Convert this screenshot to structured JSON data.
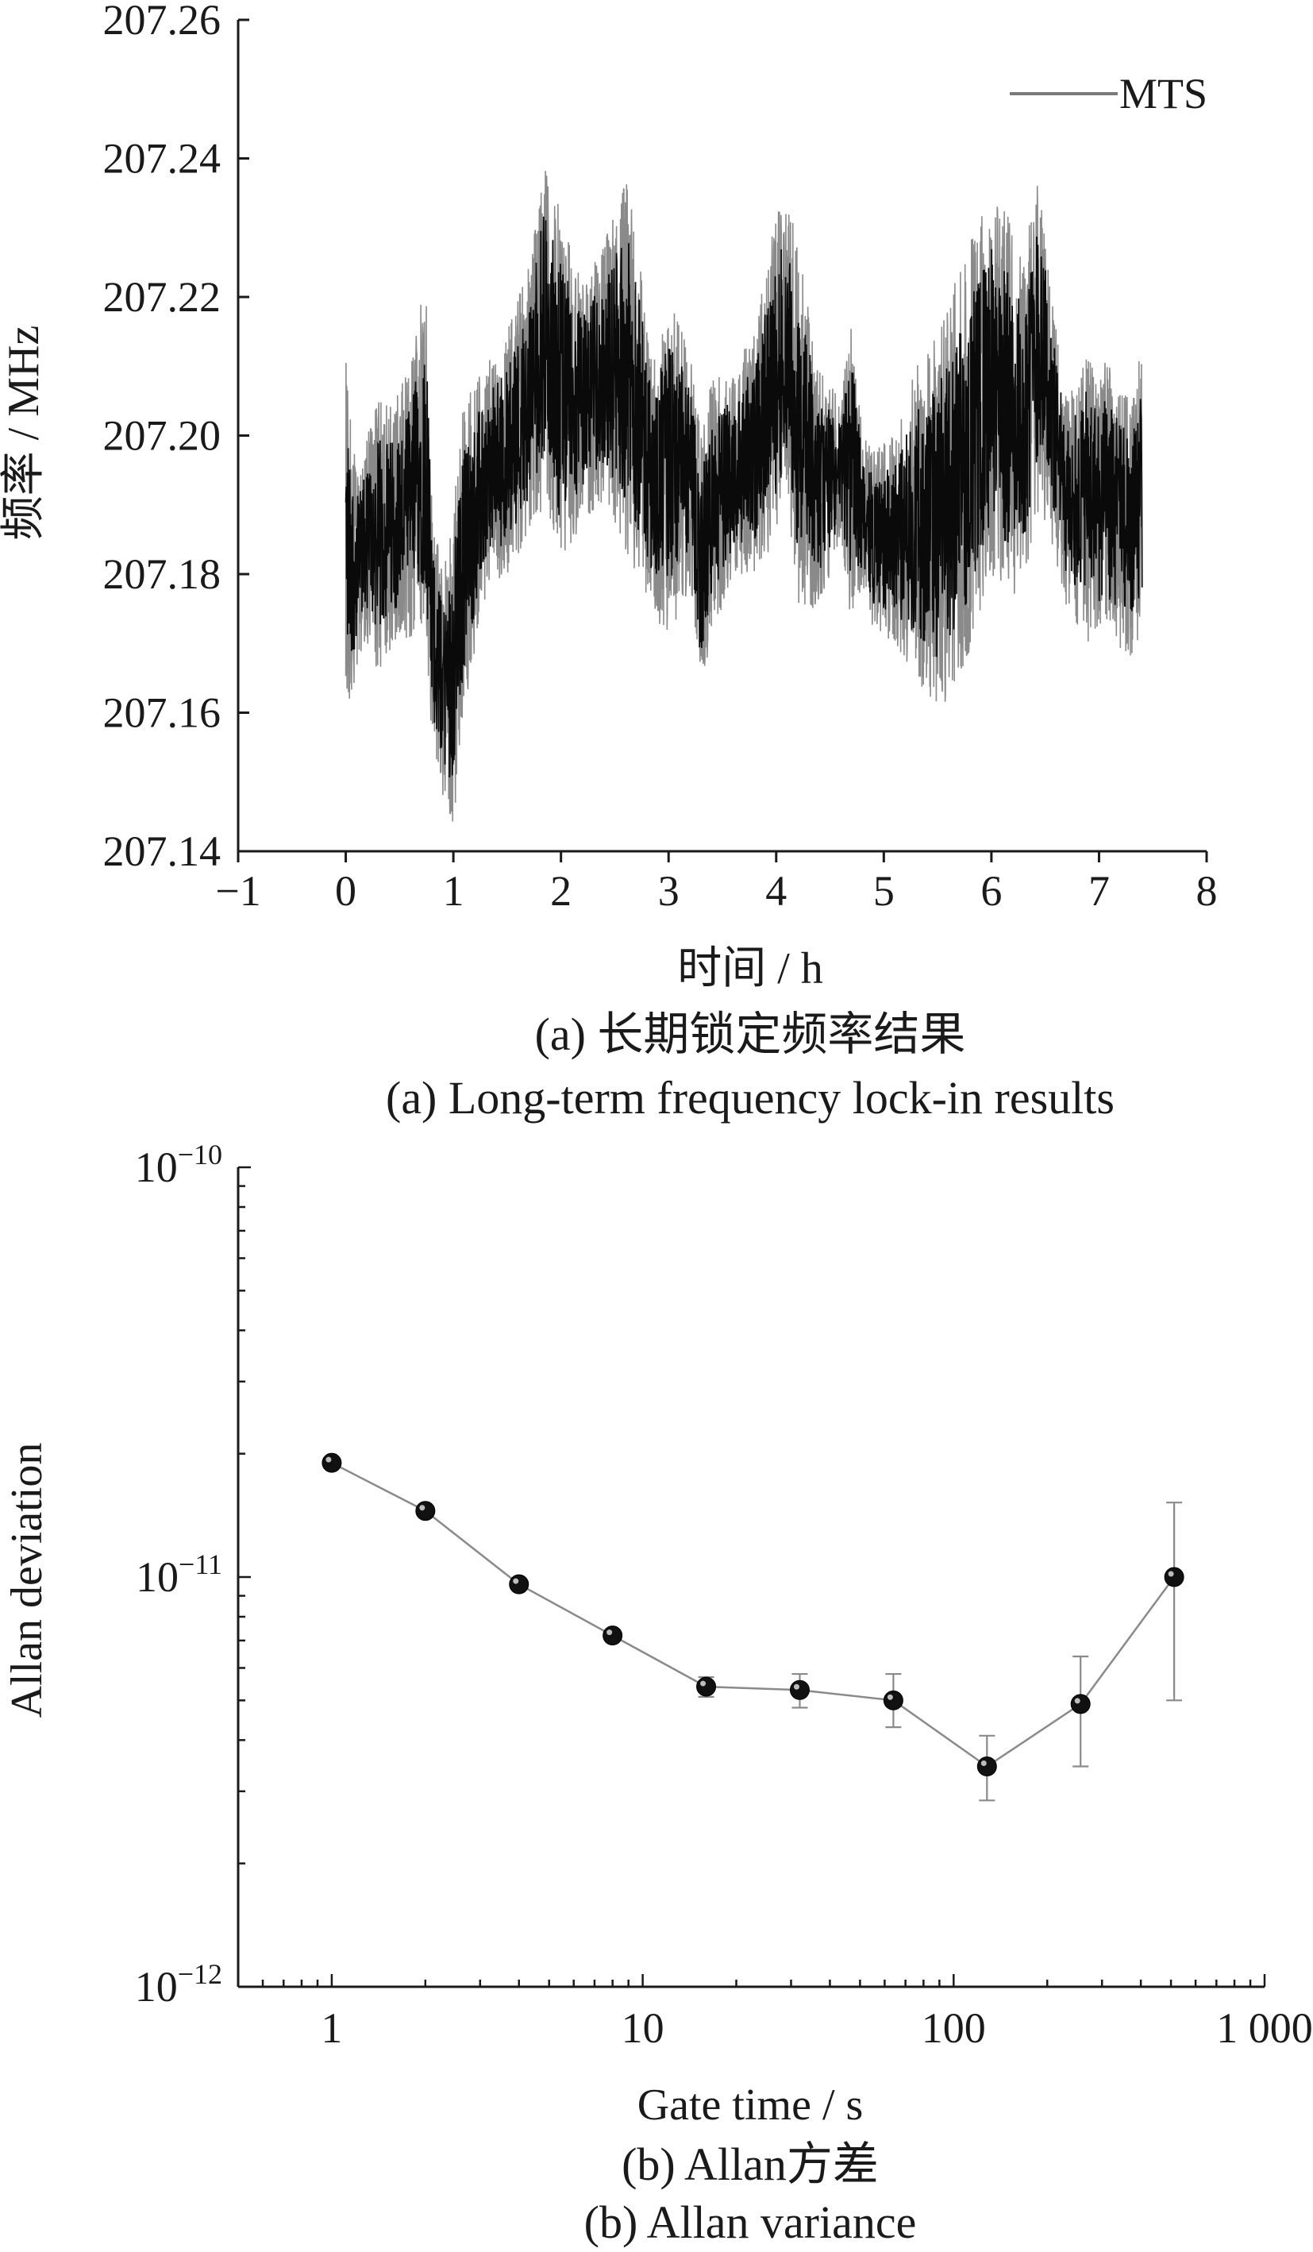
{
  "chart_data": [
    {
      "type": "line",
      "xlabel": "时间 / h",
      "ylabel": "频率 / MHz",
      "xlim": [
        -1,
        8
      ],
      "ylim": [
        207.14,
        207.26
      ],
      "x_ticks": [
        -1,
        0,
        1,
        2,
        3,
        4,
        5,
        6,
        7,
        8
      ],
      "x_tick_labels": [
        "−1",
        "0",
        "1",
        "2",
        "3",
        "4",
        "5",
        "6",
        "7",
        "8"
      ],
      "y_ticks": [
        207.14,
        207.16,
        207.18,
        207.2,
        207.22,
        207.24,
        207.26
      ],
      "y_tick_labels": [
        "207.14",
        "207.16",
        "207.18",
        "207.20",
        "207.22",
        "207.24",
        "207.26"
      ],
      "legend": {
        "entries": [
          "MTS"
        ],
        "position": "top-right"
      },
      "caption_cn": "(a) 长期锁定频率结果",
      "caption_en": "(a) Long-term frequency lock-in results",
      "series": [
        {
          "name": "MTS",
          "x_range": [
            0,
            7.4
          ],
          "envelope": {
            "x": [
              0.0,
              0.1,
              0.2,
              0.3,
              0.45,
              0.6,
              0.7,
              0.75,
              0.8,
              0.9,
              1.0,
              1.1,
              1.3,
              1.5,
              1.7,
              1.85,
              2.0,
              2.2,
              2.4,
              2.6,
              2.7,
              2.85,
              3.0,
              3.2,
              3.3,
              3.4,
              3.6,
              3.8,
              4.0,
              4.1,
              4.2,
              4.4,
              4.6,
              4.7,
              4.8,
              4.9,
              5.1,
              5.3,
              5.5,
              5.6,
              5.8,
              6.0,
              6.15,
              6.3,
              6.45,
              6.55,
              6.7,
              6.9,
              7.1,
              7.3,
              7.4
            ],
            "upper": [
              207.211,
              207.195,
              207.2,
              207.205,
              207.205,
              207.21,
              207.22,
              207.223,
              207.19,
              207.18,
              207.19,
              207.206,
              207.21,
              207.215,
              207.225,
              207.24,
              207.232,
              207.222,
              207.228,
              207.237,
              207.231,
              207.21,
              207.222,
              207.212,
              207.2,
              207.208,
              207.21,
              207.215,
              207.232,
              207.235,
              207.228,
              207.21,
              207.205,
              207.218,
              207.2,
              207.198,
              207.2,
              207.21,
              207.215,
              207.22,
              207.228,
              207.235,
              207.232,
              207.225,
              207.242,
              207.222,
              207.205,
              207.213,
              207.21,
              207.205,
              207.213
            ],
            "lower": [
              207.16,
              207.165,
              207.17,
              207.165,
              207.17,
              207.17,
              207.172,
              207.168,
              207.155,
              207.148,
              207.143,
              207.16,
              207.177,
              207.18,
              207.185,
              207.19,
              207.18,
              207.188,
              207.19,
              207.183,
              207.18,
              207.175,
              207.17,
              207.178,
              207.162,
              207.17,
              207.18,
              207.18,
              207.185,
              207.19,
              207.175,
              207.175,
              207.185,
              207.172,
              207.178,
              207.172,
              207.17,
              207.165,
              207.16,
              207.162,
              207.168,
              207.18,
              207.175,
              207.178,
              207.19,
              207.185,
              207.175,
              207.17,
              207.17,
              207.168,
              207.17
            ]
          }
        }
      ]
    },
    {
      "type": "scatter",
      "xlabel": "Gate time / s",
      "ylabel": "Allan deviation",
      "xscale": "log",
      "yscale": "log",
      "xlim": [
        0.5,
        1000
      ],
      "ylim": [
        1e-12,
        1e-10
      ],
      "x_ticks": [
        1,
        10,
        100,
        1000
      ],
      "x_tick_labels": [
        "1",
        "10",
        "100",
        "1 000"
      ],
      "y_ticks": [
        1e-12,
        1e-11,
        1e-10
      ],
      "y_tick_labels": [
        {
          "base": "10",
          "exp": "−12"
        },
        {
          "base": "10",
          "exp": "−11"
        },
        {
          "base": "10",
          "exp": "−10"
        }
      ],
      "caption_cn": "(b) Allan方差",
      "caption_en": "(b) Allan variance",
      "series": [
        {
          "x": [
            1,
            2,
            4,
            8,
            16,
            32,
            64,
            128,
            256,
            512
          ],
          "y": [
            1.9e-11,
            1.45e-11,
            9.6e-12,
            7.2e-12,
            5.4e-12,
            5.3e-12,
            5e-12,
            3.45e-12,
            4.9e-12,
            1e-11
          ],
          "err_low": [
            null,
            null,
            null,
            null,
            5.1e-12,
            4.8e-12,
            4.3e-12,
            2.85e-12,
            3.45e-12,
            5e-12
          ],
          "err_high": [
            null,
            null,
            null,
            null,
            5.7e-12,
            5.8e-12,
            5.8e-12,
            4.1e-12,
            6.4e-12,
            1.52e-11
          ]
        }
      ]
    }
  ],
  "colors": {
    "axis": "#1a1a1a",
    "trace": "#0a0a0a",
    "trace_light": "#8a8a8a",
    "marker": "#111111",
    "connector": "#8a8a8a"
  }
}
